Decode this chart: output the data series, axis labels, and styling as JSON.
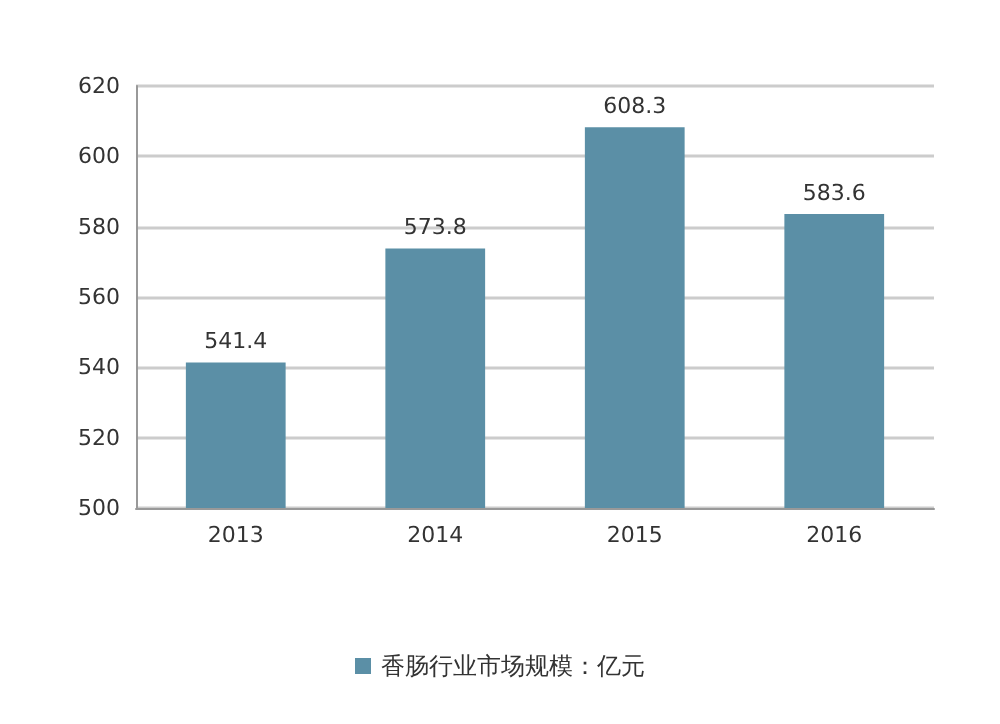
{
  "chart_data": {
    "type": "bar",
    "categories": [
      "2013",
      "2014",
      "2015",
      "2016"
    ],
    "series": [
      {
        "name": "香肠行业市场规模：亿元",
        "color": "#5b8fa6",
        "values": [
          541.4,
          573.8,
          608.3,
          583.6
        ]
      }
    ],
    "ylim": [
      500,
      620
    ],
    "yticks": [
      500,
      520,
      540,
      560,
      580,
      600,
      620
    ],
    "grid": "y",
    "legend": "bottom",
    "data_labels": true
  }
}
